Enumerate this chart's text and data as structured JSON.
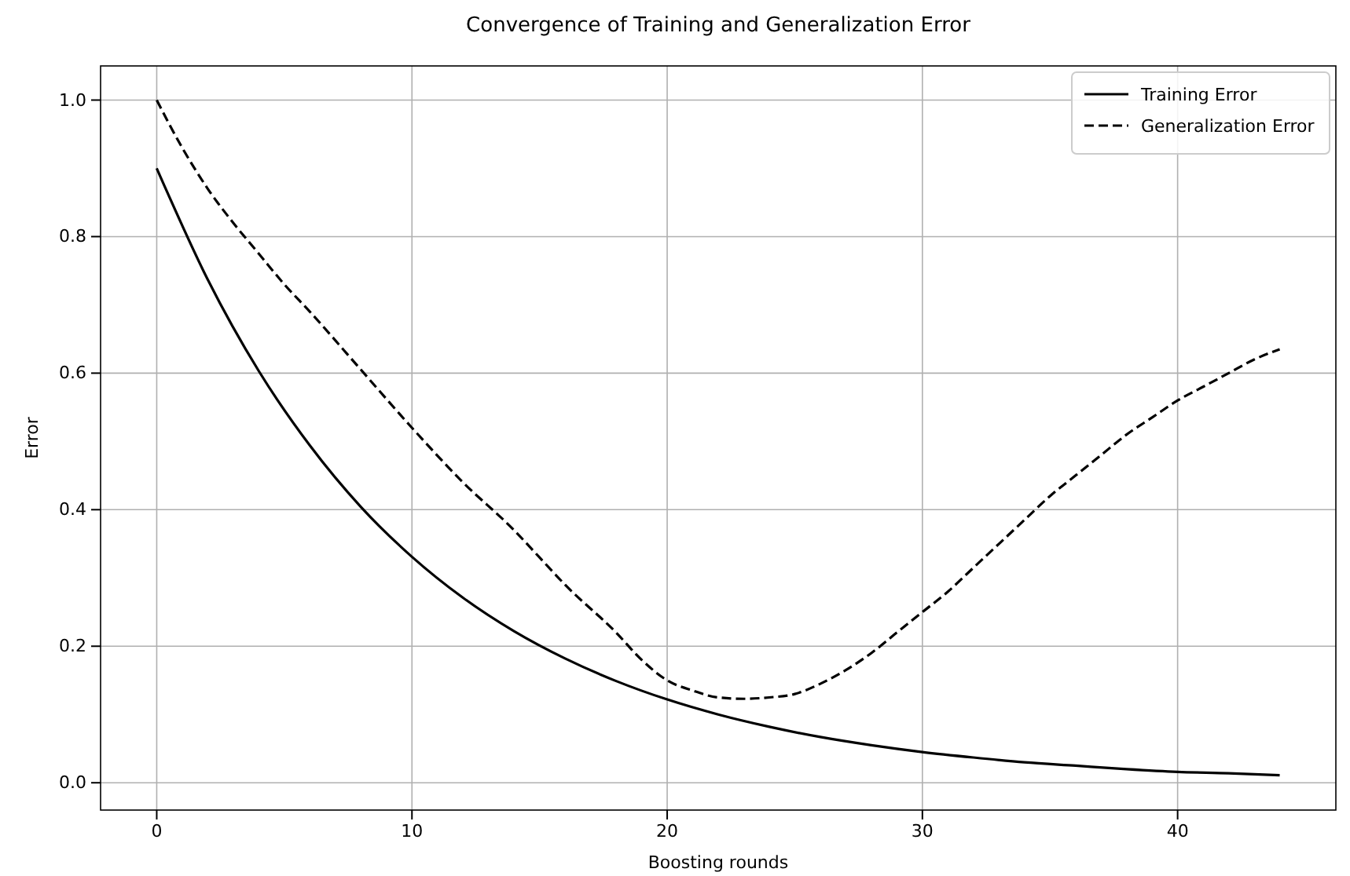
{
  "chart_data": {
    "type": "line",
    "title": "Convergence of Training and Generalization Error",
    "xlabel": "Boosting rounds",
    "ylabel": "Error",
    "xlim": [
      -2.2,
      46.2
    ],
    "xticks": [
      0,
      10,
      20,
      30,
      40
    ],
    "ylim": [
      -0.04,
      1.05
    ],
    "yticks": [
      {
        "value": 0,
        "label": "0.0"
      },
      {
        "value": 0.2,
        "label": "0.2"
      },
      {
        "value": 0.4,
        "label": "0.4"
      },
      {
        "value": 0.6,
        "label": "0.6"
      },
      {
        "value": 0.8,
        "label": "0.8"
      },
      {
        "value": 1,
        "label": "1.0"
      }
    ],
    "grid": true,
    "legend": "top right",
    "series": [
      {
        "name": "Training Error",
        "color": "#000000",
        "line_style": "solid",
        "x": [
          0,
          2,
          4,
          6,
          8,
          10,
          12,
          14,
          16,
          18,
          20,
          22,
          24,
          26,
          28,
          30,
          32,
          34,
          36,
          38,
          40,
          42,
          44
        ],
        "values": [
          0.9,
          0.737,
          0.603,
          0.494,
          0.404,
          0.331,
          0.271,
          0.222,
          0.182,
          0.149,
          0.122,
          0.1,
          0.082,
          0.067,
          0.055,
          0.045,
          0.037,
          0.03,
          0.025,
          0.02,
          0.016,
          0.014,
          0.011
        ]
      },
      {
        "name": "Generalization Error",
        "color": "#000000",
        "line_style": "dashed",
        "x": [
          0,
          1,
          2,
          3,
          4,
          5,
          6,
          8,
          10,
          12,
          14,
          15,
          16,
          18,
          19,
          20,
          21,
          22,
          23,
          24,
          25,
          26,
          27,
          28,
          29,
          30,
          31,
          32,
          33,
          34,
          35,
          36,
          37,
          38,
          39,
          40,
          41,
          42,
          43,
          44
        ],
        "values": [
          1.0,
          0.93,
          0.87,
          0.82,
          0.775,
          0.73,
          0.69,
          0.605,
          0.52,
          0.44,
          0.37,
          0.33,
          0.29,
          0.22,
          0.18,
          0.15,
          0.135,
          0.125,
          0.123,
          0.125,
          0.13,
          0.145,
          0.165,
          0.19,
          0.22,
          0.25,
          0.28,
          0.315,
          0.35,
          0.385,
          0.42,
          0.45,
          0.48,
          0.51,
          0.535,
          0.56,
          0.58,
          0.6,
          0.62,
          0.635
        ]
      }
    ]
  }
}
